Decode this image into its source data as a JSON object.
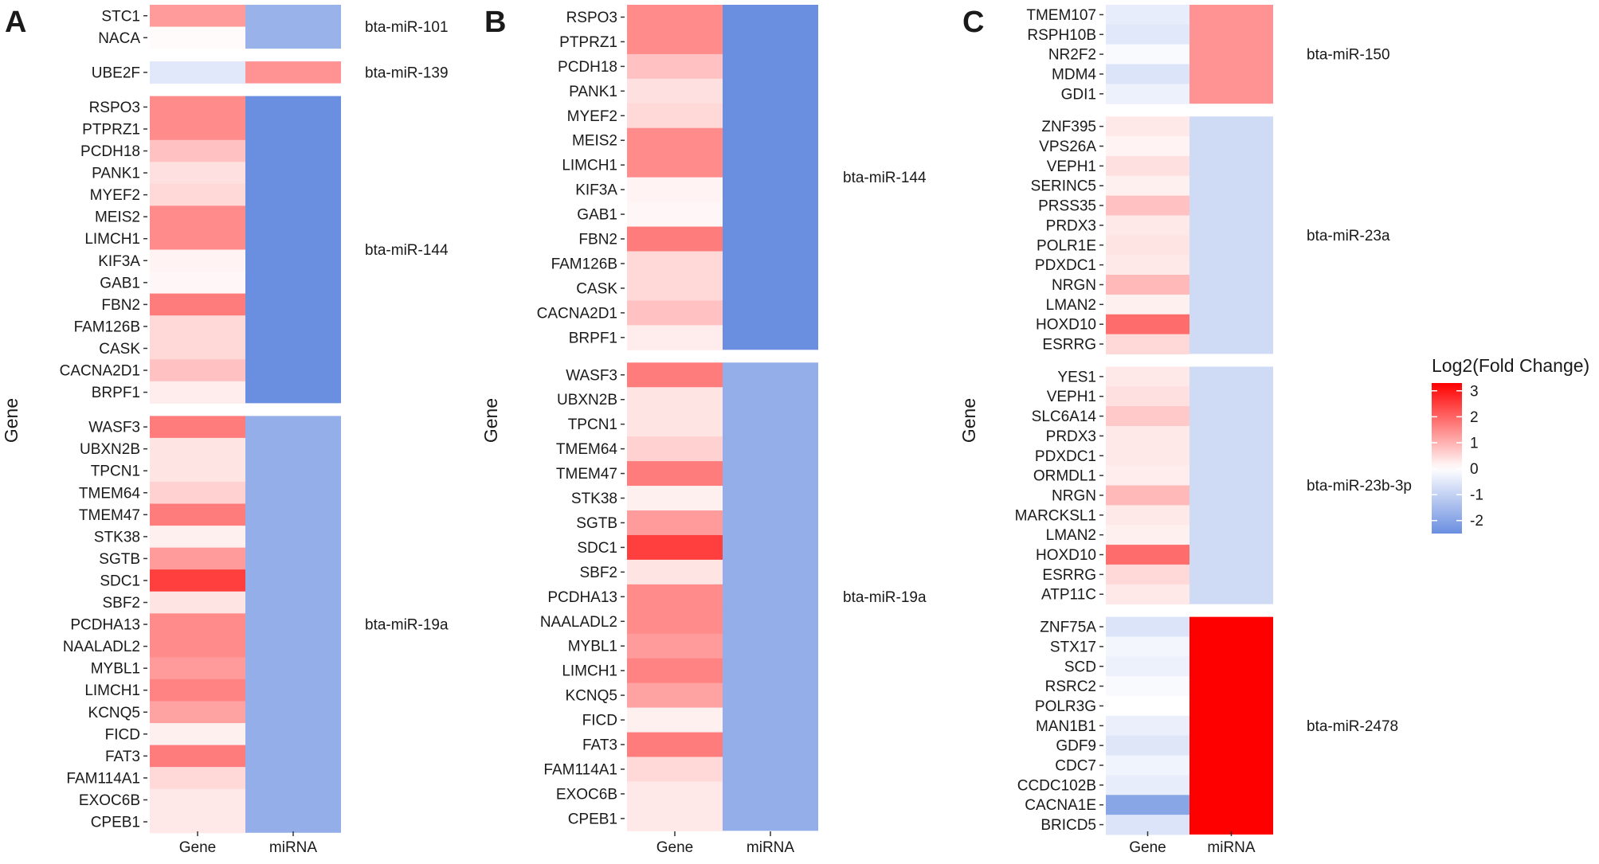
{
  "colors": {
    "low": "#6a8ee0",
    "mid": "#ffffff",
    "high": "#ff0000"
  },
  "legend": {
    "title": "Log2(Fold Change)",
    "min": -2.5,
    "max": 3.3,
    "ticks": [
      3,
      2,
      1,
      0,
      -1,
      -2
    ]
  },
  "chart_data": [
    {
      "type": "heatmap",
      "panel": "A",
      "xlabel": "",
      "ylabel": "Gene",
      "x_categories": [
        "Gene",
        "miRNA"
      ],
      "groups": [
        {
          "mirna": "bta-miR-101",
          "mirna_value": -1.7,
          "genes": [
            {
              "name": "STC1",
              "value": 1.3
            },
            {
              "name": "NACA",
              "value": 0.05
            }
          ]
        },
        {
          "mirna": "bta-miR-139",
          "mirna_value": 1.4,
          "genes": [
            {
              "name": "UBE2F",
              "value": -0.5
            }
          ]
        },
        {
          "mirna": "bta-miR-144",
          "mirna_value": -2.5,
          "genes": [
            {
              "name": "RSPO3",
              "value": 1.5
            },
            {
              "name": "PTPRZ1",
              "value": 1.5
            },
            {
              "name": "PCDH18",
              "value": 0.8
            },
            {
              "name": "PANK1",
              "value": 0.4
            },
            {
              "name": "MYEF2",
              "value": 0.5
            },
            {
              "name": "MEIS2",
              "value": 1.5
            },
            {
              "name": "LIMCH1",
              "value": 1.5
            },
            {
              "name": "KIF3A",
              "value": 0.15
            },
            {
              "name": "GAB1",
              "value": 0.1
            },
            {
              "name": "FBN2",
              "value": 1.7
            },
            {
              "name": "FAM126B",
              "value": 0.5
            },
            {
              "name": "CASK",
              "value": 0.5
            },
            {
              "name": "CACNA2D1",
              "value": 0.8
            },
            {
              "name": "BRPF1",
              "value": 0.25
            }
          ]
        },
        {
          "mirna": "bta-miR-19a",
          "mirna_value": -1.8,
          "genes": [
            {
              "name": "WASF3",
              "value": 1.7
            },
            {
              "name": "UBXN2B",
              "value": 0.35
            },
            {
              "name": "TPCN1",
              "value": 0.35
            },
            {
              "name": "TMEM64",
              "value": 0.6
            },
            {
              "name": "TMEM47",
              "value": 1.7
            },
            {
              "name": "STK38",
              "value": 0.2
            },
            {
              "name": "SGTB",
              "value": 1.3
            },
            {
              "name": "SDC1",
              "value": 2.5
            },
            {
              "name": "SBF2",
              "value": 0.35
            },
            {
              "name": "PCDHA13",
              "value": 1.5
            },
            {
              "name": "NAALADL2",
              "value": 1.5
            },
            {
              "name": "MYBL1",
              "value": 1.3
            },
            {
              "name": "LIMCH1",
              "value": 1.6
            },
            {
              "name": "KCNQ5",
              "value": 1.2
            },
            {
              "name": "FICD",
              "value": 0.2
            },
            {
              "name": "FAT3",
              "value": 1.7
            },
            {
              "name": "FAM114A1",
              "value": 0.5
            },
            {
              "name": "EXOC6B",
              "value": 0.3
            },
            {
              "name": "CPEB1",
              "value": 0.3
            }
          ]
        }
      ]
    },
    {
      "type": "heatmap",
      "panel": "B",
      "xlabel": "",
      "ylabel": "Gene",
      "x_categories": [
        "Gene",
        "miRNA"
      ],
      "groups": [
        {
          "mirna": "bta-miR-144",
          "mirna_value": -2.5,
          "genes": [
            {
              "name": "RSPO3",
              "value": 1.5
            },
            {
              "name": "PTPRZ1",
              "value": 1.5
            },
            {
              "name": "PCDH18",
              "value": 0.8
            },
            {
              "name": "PANK1",
              "value": 0.4
            },
            {
              "name": "MYEF2",
              "value": 0.5
            },
            {
              "name": "MEIS2",
              "value": 1.5
            },
            {
              "name": "LIMCH1",
              "value": 1.5
            },
            {
              "name": "KIF3A",
              "value": 0.15
            },
            {
              "name": "GAB1",
              "value": 0.1
            },
            {
              "name": "FBN2",
              "value": 1.7
            },
            {
              "name": "FAM126B",
              "value": 0.5
            },
            {
              "name": "CASK",
              "value": 0.5
            },
            {
              "name": "CACNA2D1",
              "value": 0.8
            },
            {
              "name": "BRPF1",
              "value": 0.25
            }
          ]
        },
        {
          "mirna": "bta-miR-19a",
          "mirna_value": -1.8,
          "genes": [
            {
              "name": "WASF3",
              "value": 1.7
            },
            {
              "name": "UBXN2B",
              "value": 0.35
            },
            {
              "name": "TPCN1",
              "value": 0.35
            },
            {
              "name": "TMEM64",
              "value": 0.6
            },
            {
              "name": "TMEM47",
              "value": 1.7
            },
            {
              "name": "STK38",
              "value": 0.2
            },
            {
              "name": "SGTB",
              "value": 1.3
            },
            {
              "name": "SDC1",
              "value": 2.5
            },
            {
              "name": "SBF2",
              "value": 0.35
            },
            {
              "name": "PCDHA13",
              "value": 1.5
            },
            {
              "name": "NAALADL2",
              "value": 1.5
            },
            {
              "name": "MYBL1",
              "value": 1.3
            },
            {
              "name": "LIMCH1",
              "value": 1.6
            },
            {
              "name": "KCNQ5",
              "value": 1.2
            },
            {
              "name": "FICD",
              "value": 0.2
            },
            {
              "name": "FAT3",
              "value": 1.7
            },
            {
              "name": "FAM114A1",
              "value": 0.5
            },
            {
              "name": "EXOC6B",
              "value": 0.3
            },
            {
              "name": "CPEB1",
              "value": 0.3
            }
          ]
        }
      ]
    },
    {
      "type": "heatmap",
      "panel": "C",
      "xlabel": "",
      "ylabel": "Gene",
      "x_categories": [
        "Gene",
        "miRNA"
      ],
      "groups": [
        {
          "mirna": "bta-miR-150",
          "mirna_value": 1.4,
          "genes": [
            {
              "name": "TMEM107",
              "value": -0.4
            },
            {
              "name": "RSPH10B",
              "value": -0.5
            },
            {
              "name": "NR2F2",
              "value": -0.1
            },
            {
              "name": "MDM4",
              "value": -0.6
            },
            {
              "name": "GDI1",
              "value": -0.3
            }
          ]
        },
        {
          "mirna": "bta-miR-23a",
          "mirna_value": -0.8,
          "genes": [
            {
              "name": "ZNF395",
              "value": 0.3
            },
            {
              "name": "VPS26A",
              "value": 0.15
            },
            {
              "name": "VEPH1",
              "value": 0.4
            },
            {
              "name": "SERINC5",
              "value": 0.2
            },
            {
              "name": "PRSS35",
              "value": 0.8
            },
            {
              "name": "PRDX3",
              "value": 0.3
            },
            {
              "name": "POLR1E",
              "value": 0.35
            },
            {
              "name": "PDXDC1",
              "value": 0.3
            },
            {
              "name": "NRGN",
              "value": 0.9
            },
            {
              "name": "LMAN2",
              "value": 0.2
            },
            {
              "name": "HOXD10",
              "value": 1.9
            },
            {
              "name": "ESRRG",
              "value": 0.5
            }
          ]
        },
        {
          "mirna": "bta-miR-23b-3p",
          "mirna_value": -0.8,
          "genes": [
            {
              "name": "YES1",
              "value": 0.3
            },
            {
              "name": "VEPH1",
              "value": 0.4
            },
            {
              "name": "SLC6A14",
              "value": 0.7
            },
            {
              "name": "PRDX3",
              "value": 0.3
            },
            {
              "name": "PDXDC1",
              "value": 0.3
            },
            {
              "name": "ORMDL1",
              "value": 0.25
            },
            {
              "name": "NRGN",
              "value": 0.9
            },
            {
              "name": "MARCKSL1",
              "value": 0.3
            },
            {
              "name": "LMAN2",
              "value": 0.2
            },
            {
              "name": "HOXD10",
              "value": 1.9
            },
            {
              "name": "ESRRG",
              "value": 0.5
            },
            {
              "name": "ATP11C",
              "value": 0.3
            }
          ]
        },
        {
          "mirna": "bta-miR-2478",
          "mirna_value": 3.3,
          "genes": [
            {
              "name": "ZNF75A",
              "value": -0.6
            },
            {
              "name": "STX17",
              "value": -0.2
            },
            {
              "name": "SCD",
              "value": -0.3
            },
            {
              "name": "RSRC2",
              "value": -0.1
            },
            {
              "name": "POLR3G",
              "value": 0.0
            },
            {
              "name": "MAN1B1",
              "value": -0.35
            },
            {
              "name": "GDF9",
              "value": -0.55
            },
            {
              "name": "CDC7",
              "value": -0.25
            },
            {
              "name": "CCDC102B",
              "value": -0.4
            },
            {
              "name": "CACNA1E",
              "value": -2.0
            },
            {
              "name": "BRICD5",
              "value": -0.6
            }
          ]
        }
      ]
    }
  ]
}
